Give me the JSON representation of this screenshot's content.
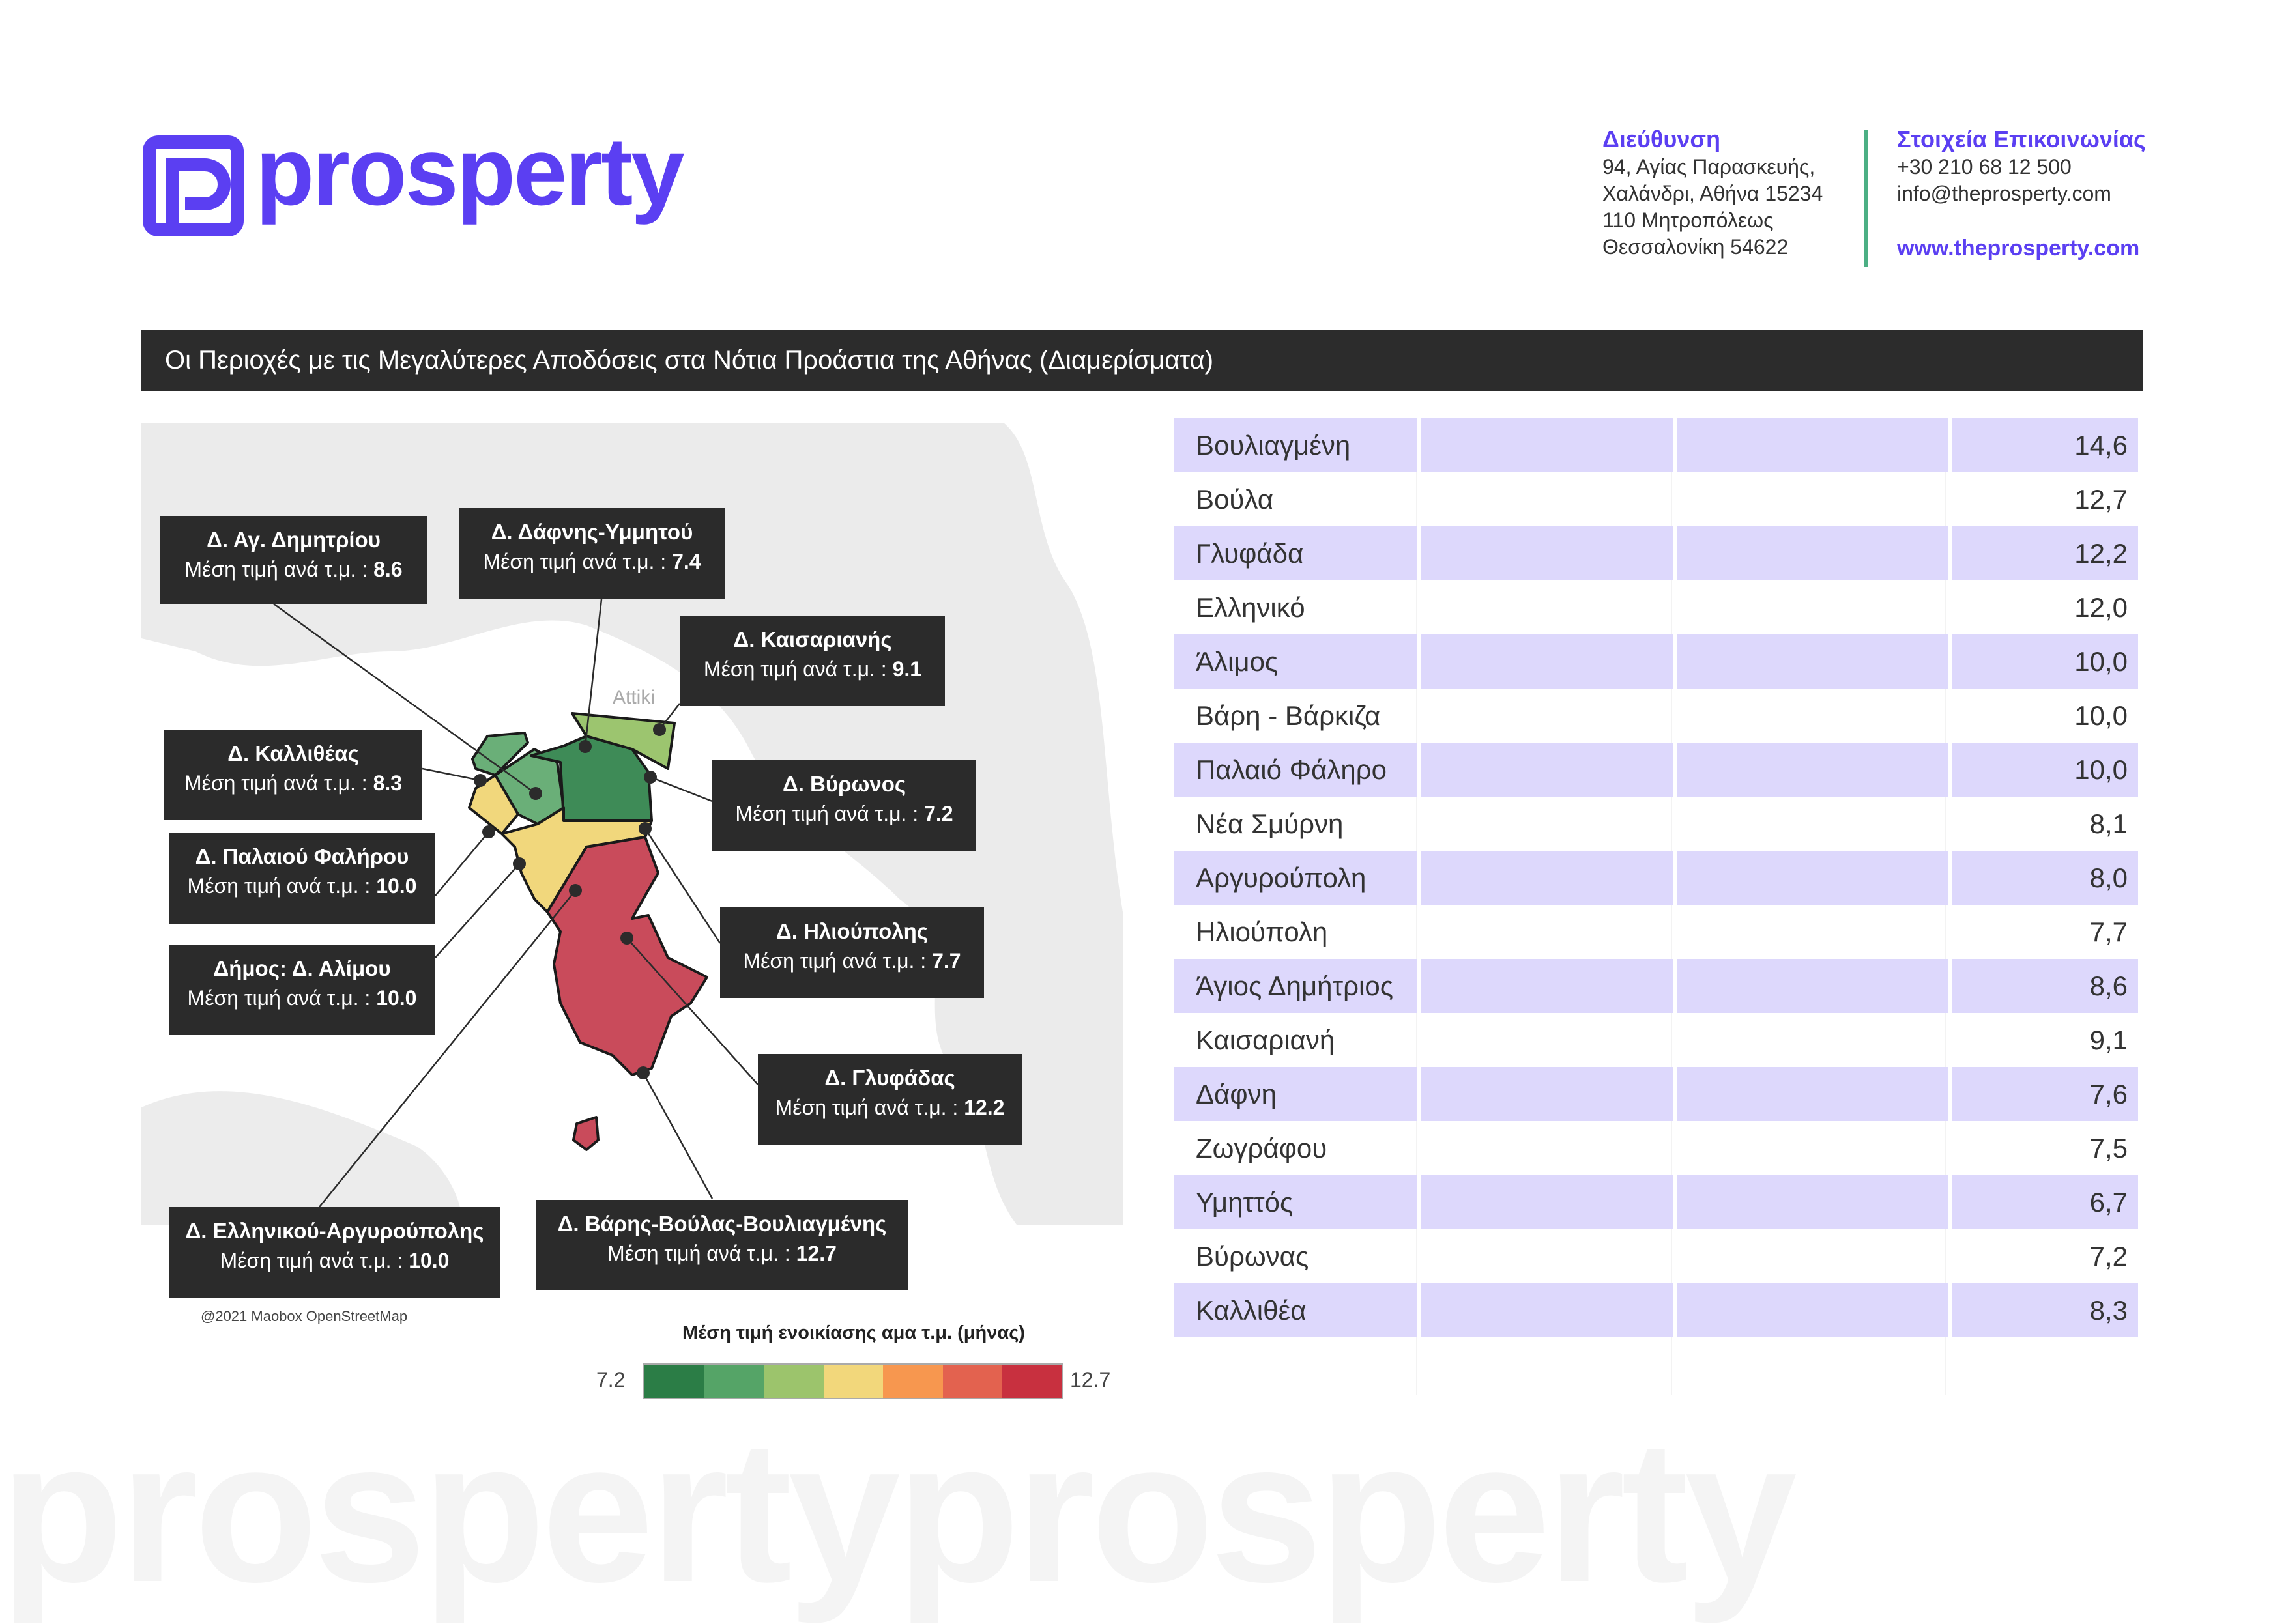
{
  "brand": {
    "name": "prosperty",
    "color": "#5b3ff2",
    "icon": "prosperty-logo-icon"
  },
  "watermark": "prospertyprosperty",
  "address": {
    "heading": "Διεύθυνση",
    "lines": [
      "94, Αγίας Παρασκευής,",
      "Χαλάνδρι, Αθήνα 15234",
      "110 Μητροπόλεως",
      "Θεσσαλονίκη 54622"
    ]
  },
  "contact": {
    "heading": "Στοιχεία Επικοινωνίας",
    "phone": "+30 210 68 12 500",
    "email": "info@theprosperty.com",
    "website": "www.theprosperty.com"
  },
  "title": "Οι Περιοχές με τις Μεγαλύτερες Αποδόσεις στα Νότια Προάστια της Αθήνας (Διαμερίσματα)",
  "map": {
    "value_prefix": "Μέση τιμή ανά τ.μ. : ",
    "place_label": "Attiki",
    "labels": [
      {
        "name": "Δ. Αγ. Δημητρίου",
        "value": "8.6"
      },
      {
        "name": "Δ. Δάφνης-Υμμητού",
        "value": "7.4"
      },
      {
        "name": "Δ. Καισαριανής",
        "value": "9.1"
      },
      {
        "name": "Δ. Καλλιθέας",
        "value": "8.3"
      },
      {
        "name": "Δ. Βύρωνος",
        "value": "7.2"
      },
      {
        "name": "Δ. Παλαιού Φαλήρου",
        "value": "10.0"
      },
      {
        "name": "Δήμος: Δ. Αλίμου",
        "value": "10.0"
      },
      {
        "name": "Δ. Ηλιούπολης",
        "value": "7.7"
      },
      {
        "name": "Δ. Γλυφάδας",
        "value": "12.2"
      },
      {
        "name": "Δ. Ελληνικού-Αργυρούπολης",
        "value": "10.0"
      },
      {
        "name": "Δ. Βάρης-Βούλας-Βουλιαγμένης",
        "value": "12.7"
      }
    ],
    "legend": {
      "title": "Μέση τιμή ενοικίασης αμα τ.μ. (μήνας)",
      "min": "7.2",
      "max": "12.7",
      "colors": [
        "#2b7d46",
        "#55a467",
        "#9cc46c",
        "#f2d77b",
        "#f7974f",
        "#e3624f",
        "#c8303f"
      ]
    },
    "attribution": "@2021 Maobox OpenStreetMap"
  },
  "table": {
    "rows": [
      {
        "area": "Βουλιαγμένη",
        "value": "14,6"
      },
      {
        "area": "Βούλα",
        "value": "12,7"
      },
      {
        "area": "Γλυφάδα",
        "value": "12,2"
      },
      {
        "area": "Ελληνικό",
        "value": "12,0"
      },
      {
        "area": "Άλιμος",
        "value": "10,0"
      },
      {
        "area": "Βάρη - Βάρκιζα",
        "value": "10,0"
      },
      {
        "area": "Παλαιό Φάληρο",
        "value": "10,0"
      },
      {
        "area": "Νέα Σμύρνη",
        "value": "8,1"
      },
      {
        "area": "Αργυρούπολη",
        "value": "8,0"
      },
      {
        "area": "Ηλιούπολη",
        "value": "7,7"
      },
      {
        "area": "Άγιος Δημήτριος",
        "value": "8,6"
      },
      {
        "area": "Καισαριανή",
        "value": "9,1"
      },
      {
        "area": "Δάφνη",
        "value": "7,6"
      },
      {
        "area": "Ζωγράφου",
        "value": "7,5"
      },
      {
        "area": "Υμηττός",
        "value": "6,7"
      },
      {
        "area": "Βύρωνας",
        "value": "7,2"
      },
      {
        "area": "Καλλιθέα",
        "value": "8,3"
      }
    ]
  }
}
